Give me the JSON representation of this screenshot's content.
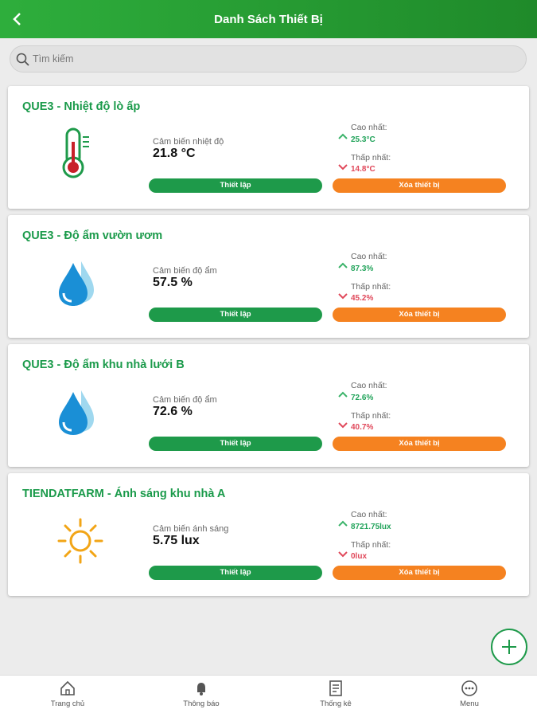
{
  "header": {
    "title": "Danh Sách Thiết Bị"
  },
  "search": {
    "placeholder": "Tìm kiếm"
  },
  "devices": [
    {
      "title": "QUE3 - Nhiệt độ lò ấp",
      "sensor": "Cảm biến nhiệt độ",
      "value": "21.8 °C",
      "max_label": "Cao nhất:",
      "max": "25.3°C",
      "min_label": "Thấp nhất:",
      "min": "14.8°C",
      "setup": "Thiết lập",
      "delete": "Xóa thiết bị"
    },
    {
      "title": "QUE3 - Độ ẩm vườn ươm",
      "sensor": "Cảm biến độ ẩm",
      "value": "57.5 %",
      "max_label": "Cao nhất:",
      "max": "87.3%",
      "min_label": "Thấp nhất:",
      "min": "45.2%",
      "setup": "Thiết lập",
      "delete": "Xóa thiết bị"
    },
    {
      "title": "QUE3 - Độ ẩm khu nhà lưới B",
      "sensor": "Cảm biến độ ẩm",
      "value": "72.6 %",
      "max_label": "Cao nhất:",
      "max": "72.6%",
      "min_label": "Thấp nhất:",
      "min": "40.7%",
      "setup": "Thiết lập",
      "delete": "Xóa thiết bị"
    },
    {
      "title": "TIENDATFARM - Ánh sáng khu nhà A",
      "sensor": "Cảm biến ánh sáng",
      "value": "5.75 lux",
      "max_label": "Cao nhất:",
      "max": "8721.75lux",
      "min_label": "Thấp nhất:",
      "min": "0lux",
      "setup": "Thiết lập",
      "delete": "Xóa thiết bị"
    }
  ],
  "nav": [
    "Trang chủ",
    "Thông báo",
    "Thống kê",
    "Menu"
  ]
}
